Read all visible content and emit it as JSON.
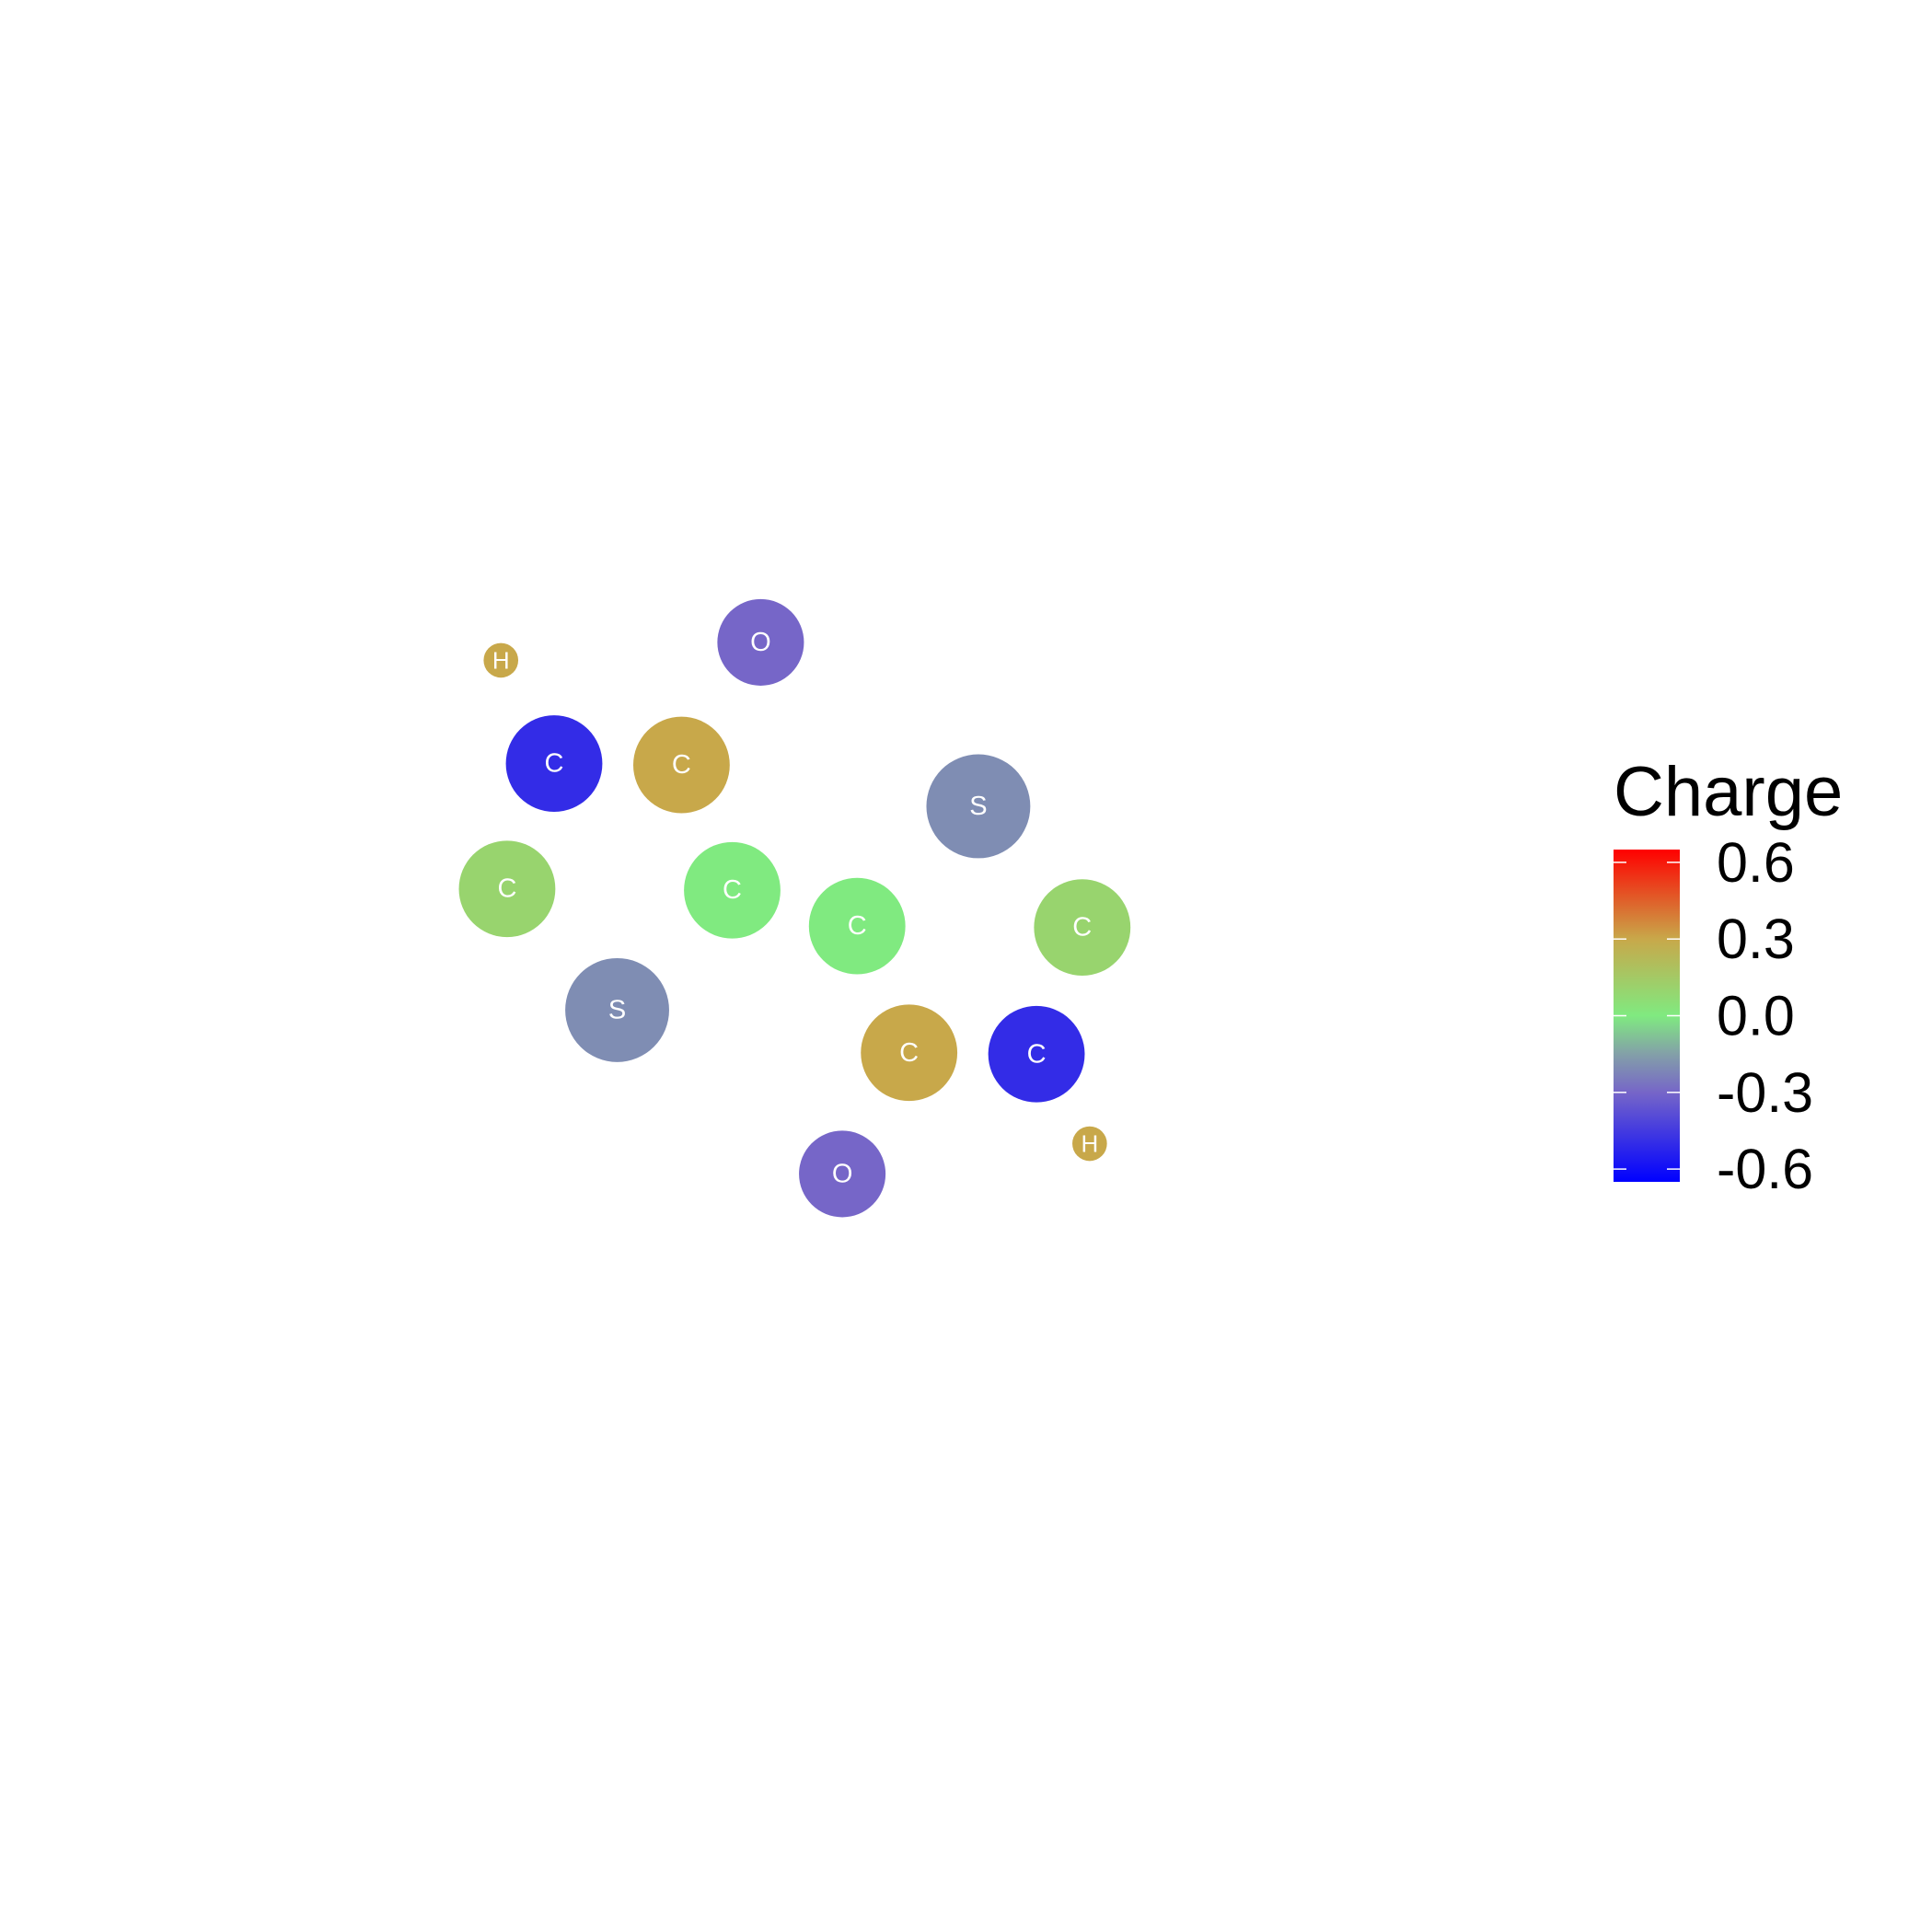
{
  "chart_data": {
    "type": "scatter",
    "grid": false,
    "axes": "none",
    "x_range": [
      -4.4,
      8.4
    ],
    "y_range": [
      -4.4,
      8.4
    ],
    "points": [
      {
        "element": "H",
        "x": -0.35,
        "y": 4.24,
        "charge": 0.3
      },
      {
        "element": "O",
        "x": 1.75,
        "y": 4.37,
        "charge": -0.3
      },
      {
        "element": "C",
        "x": 0.08,
        "y": 3.49,
        "charge": -0.5
      },
      {
        "element": "C",
        "x": 1.11,
        "y": 3.48,
        "charge": 0.3
      },
      {
        "element": "S",
        "x": 3.51,
        "y": 3.18,
        "charge": -0.2
      },
      {
        "element": "C",
        "x": -0.3,
        "y": 2.58,
        "charge": 0.1
      },
      {
        "element": "C",
        "x": 1.52,
        "y": 2.57,
        "charge": 0.0
      },
      {
        "element": "C",
        "x": 2.53,
        "y": 2.31,
        "charge": 0.0
      },
      {
        "element": "C",
        "x": 4.35,
        "y": 2.3,
        "charge": 0.1
      },
      {
        "element": "S",
        "x": 0.59,
        "y": 1.7,
        "charge": -0.2
      },
      {
        "element": "C",
        "x": 2.95,
        "y": 1.39,
        "charge": 0.3
      },
      {
        "element": "C",
        "x": 3.98,
        "y": 1.38,
        "charge": -0.5
      },
      {
        "element": "O",
        "x": 2.41,
        "y": 0.51,
        "charge": -0.3
      },
      {
        "element": "H",
        "x": 4.41,
        "y": 0.73,
        "charge": 0.3
      }
    ],
    "element_sizes": {
      "H": 0.14,
      "C": 0.39,
      "O": 0.35,
      "S": 0.42
    },
    "legend": {
      "title": "Charge",
      "position": "right",
      "limits": [
        -0.65,
        0.65
      ],
      "ticks": [
        0.6,
        0.3,
        0.0,
        -0.3,
        -0.6
      ],
      "tick_labels": [
        "0.6",
        "0.3",
        "0.0",
        "-0.3",
        "-0.6"
      ],
      "gradient": [
        {
          "value": -0.65,
          "color": "#0000FF"
        },
        {
          "value": -0.3,
          "color": "#7666C8"
        },
        {
          "value": -0.15,
          "color": "#83A0A8"
        },
        {
          "value": 0.0,
          "color": "#80EA80"
        },
        {
          "value": 0.3,
          "color": "#C8A84A"
        },
        {
          "value": 0.65,
          "color": "#FF0000"
        }
      ]
    }
  }
}
